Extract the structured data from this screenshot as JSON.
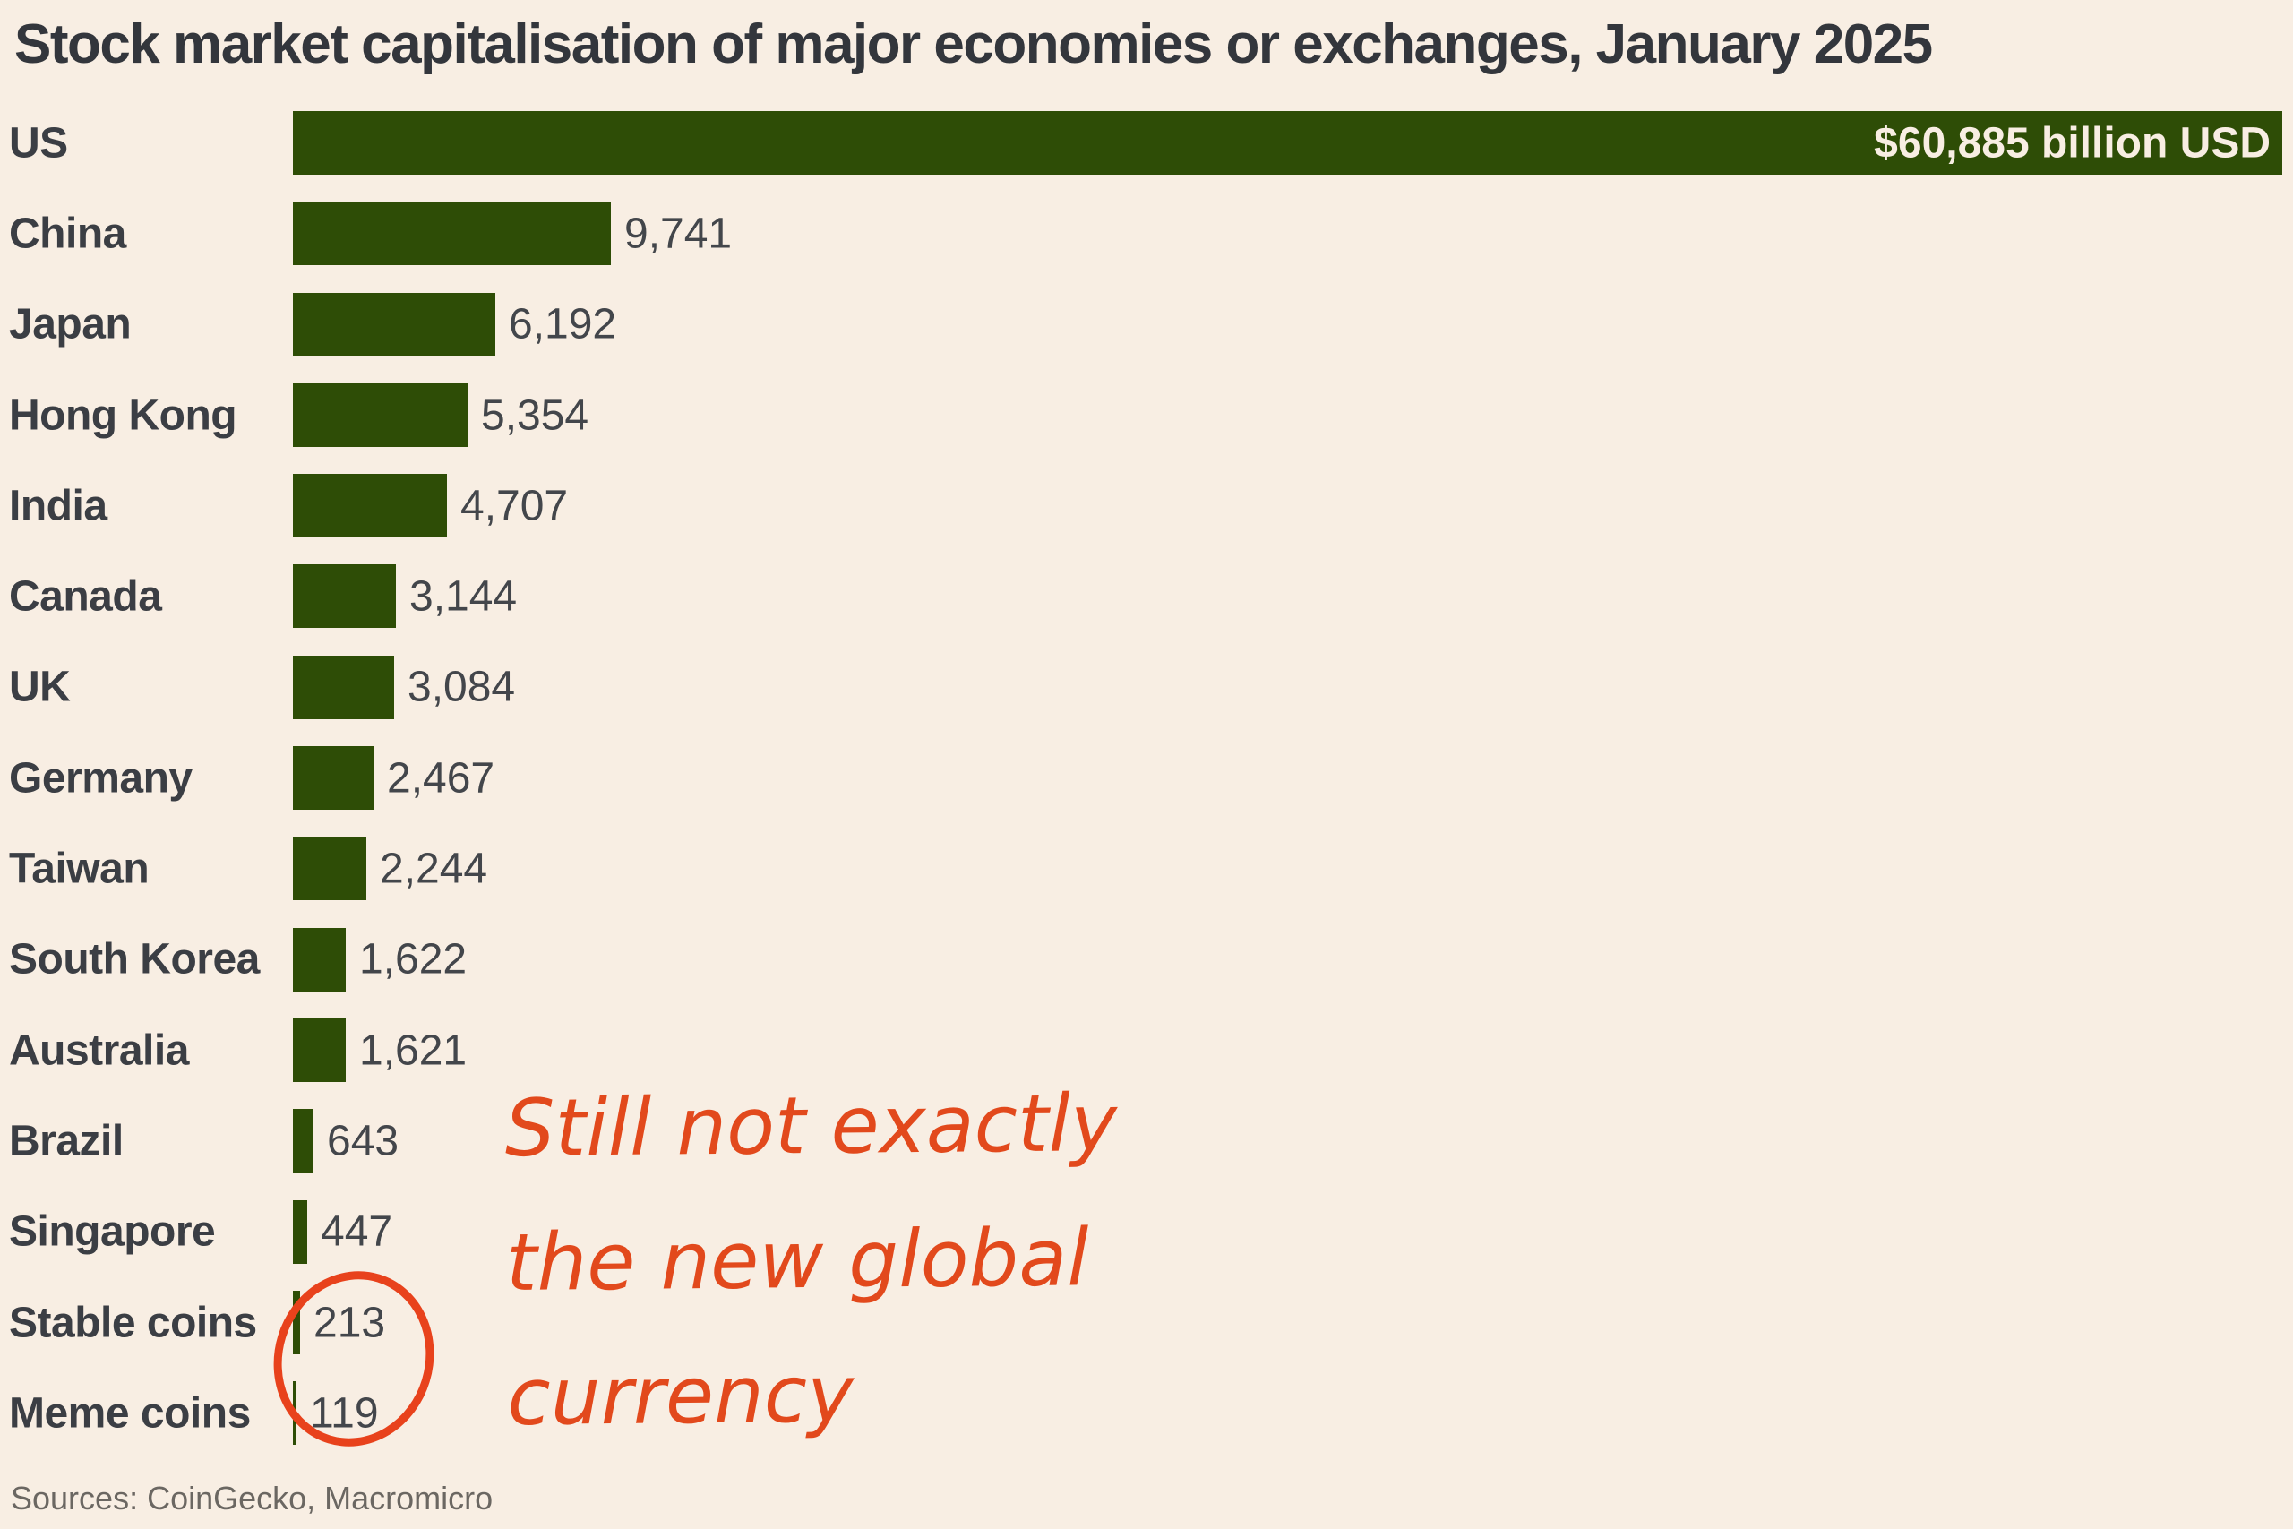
{
  "page": {
    "background": "#f8eee3"
  },
  "chart_data": {
    "type": "bar",
    "orientation": "horizontal",
    "title": "Stock market capitalisation of major economies or exchanges, January 2025",
    "unit": "billion USD",
    "categories": [
      "US",
      "China",
      "Japan",
      "Hong Kong",
      "India",
      "Canada",
      "UK",
      "Germany",
      "Taiwan",
      "South Korea",
      "Australia",
      "Brazil",
      "Singapore",
      "Stable coins",
      "Meme coins"
    ],
    "values": [
      60885,
      9741,
      6192,
      5354,
      4707,
      3144,
      3084,
      2467,
      2244,
      1622,
      1621,
      643,
      447,
      213,
      119
    ],
    "value_labels": [
      "$60,885 billion USD",
      "9,741",
      "6,192",
      "5,354",
      "4,707",
      "3,144",
      "3,084",
      "2,467",
      "2,244",
      "1,622",
      "1,621",
      "643",
      "447",
      "213",
      "119"
    ],
    "xlim": [
      0,
      60885
    ],
    "grid": false,
    "legend": false,
    "bar_color": "#2e4d06",
    "title_color": "#33363c",
    "label_color": "#3b3e44",
    "value_color": "#43464b",
    "inside_value_color": "#f8eee3",
    "annotation": {
      "lines": [
        "Still not exactly",
        "the new global",
        "currency"
      ],
      "color": "#e2491c",
      "circle_color": "#e8421c",
      "circled_values": [
        "213",
        "119"
      ]
    },
    "source_note": "Sources: CoinGecko, Macromicro",
    "source_color": "#6b6762"
  }
}
